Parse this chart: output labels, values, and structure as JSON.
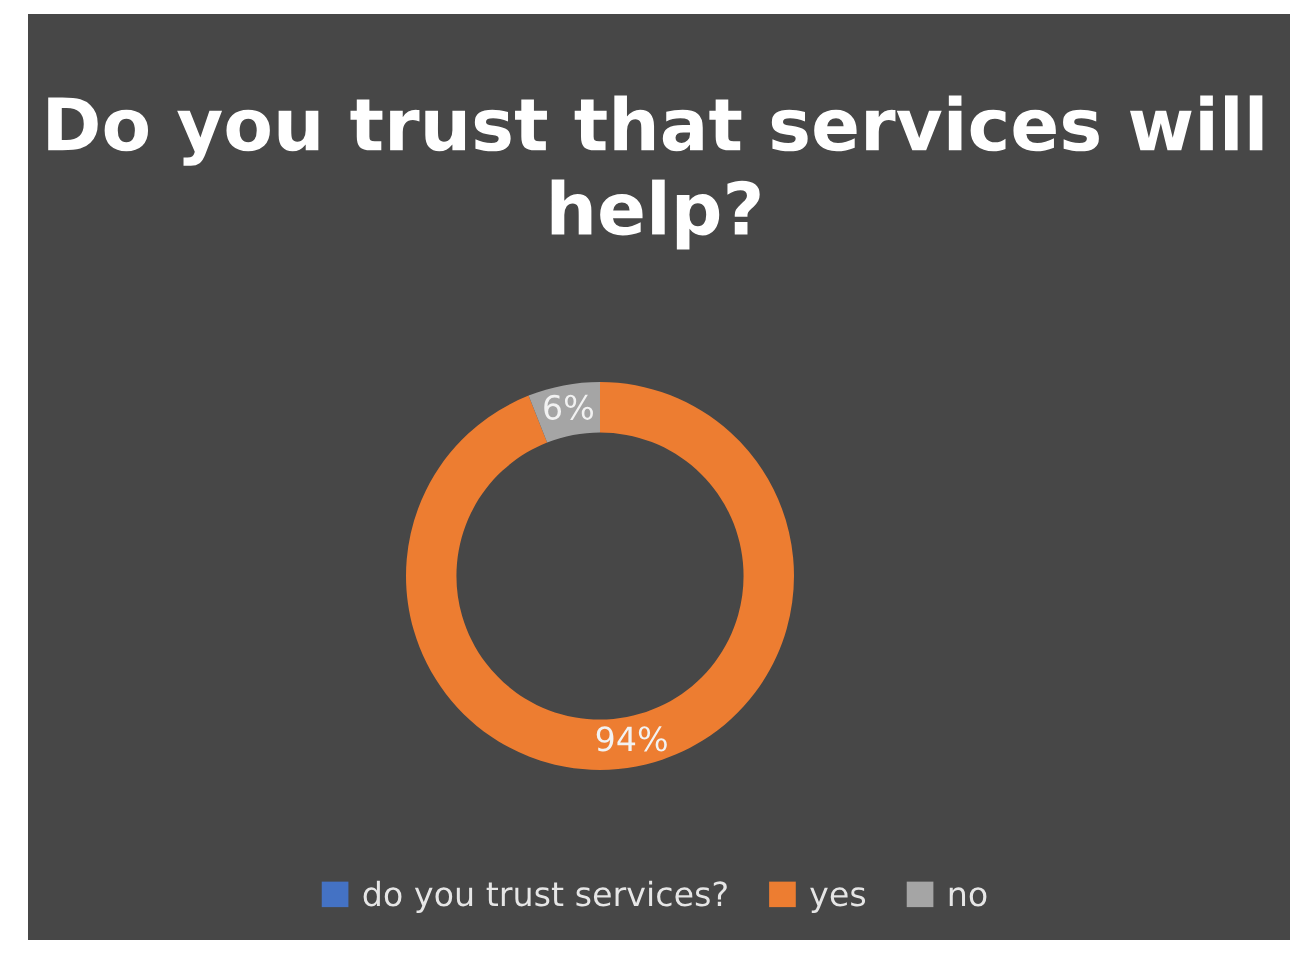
{
  "chart_data": {
    "type": "donut",
    "title": "Do you trust that services will help?",
    "categories": [
      "do you trust services?",
      "yes",
      "no"
    ],
    "values": [
      0,
      94,
      6
    ],
    "colors": [
      "#4472c4",
      "#ed7d31",
      "#a5a5a5"
    ],
    "value_labels": [
      null,
      "94%",
      "6%"
    ],
    "legend": "bottom"
  }
}
